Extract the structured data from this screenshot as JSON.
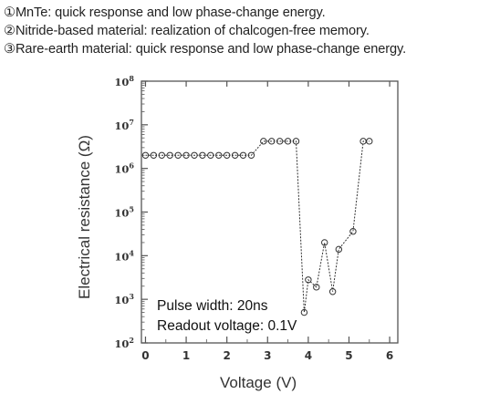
{
  "notes": [
    "①MnTe: quick response and low phase-change energy.",
    "②Nitride-based material: realization of chalcogen-free memory.",
    "③Rare-earth material: quick response and low phase-change energy."
  ],
  "chart_data": {
    "type": "scatter",
    "xlabel": "Voltage  (V)",
    "ylabel": "Electrical resistance (Ω)",
    "xlim": [
      -0.1,
      6.2
    ],
    "ylim_log10": [
      2,
      8
    ],
    "x_ticks": [
      "0",
      "1",
      "2",
      "3",
      "4",
      "5",
      "6"
    ],
    "y_ticks": [
      {
        "base": "10",
        "exp": "2"
      },
      {
        "base": "10",
        "exp": "3"
      },
      {
        "base": "10",
        "exp": "4"
      },
      {
        "base": "10",
        "exp": "5"
      },
      {
        "base": "10",
        "exp": "6"
      },
      {
        "base": "10",
        "exp": "7"
      },
      {
        "base": "10",
        "exp": "8"
      }
    ],
    "annotations": [
      "Pulse width: 20ns",
      "Readout voltage: 0.1V"
    ],
    "series": [
      {
        "x": [
          0,
          0.2,
          0.4,
          0.6,
          0.8,
          1.0,
          1.2,
          1.4,
          1.6,
          1.8,
          2.0,
          2.2,
          2.4,
          2.6,
          2.9,
          3.1,
          3.3,
          3.5,
          3.7,
          3.9,
          4.0,
          4.2,
          4.4,
          4.6,
          4.75,
          5.1,
          5.35,
          5.5
        ],
        "y": [
          2000000,
          2000000,
          2000000,
          2000000,
          2000000,
          2000000,
          2000000,
          2000000,
          2000000,
          2000000,
          2000000,
          2000000,
          2000000,
          2000000,
          4200000,
          4200000,
          4200000,
          4200000,
          4200000,
          500,
          2800,
          1900,
          20000,
          1500,
          14000,
          36000,
          4200000,
          4200000
        ]
      }
    ]
  }
}
